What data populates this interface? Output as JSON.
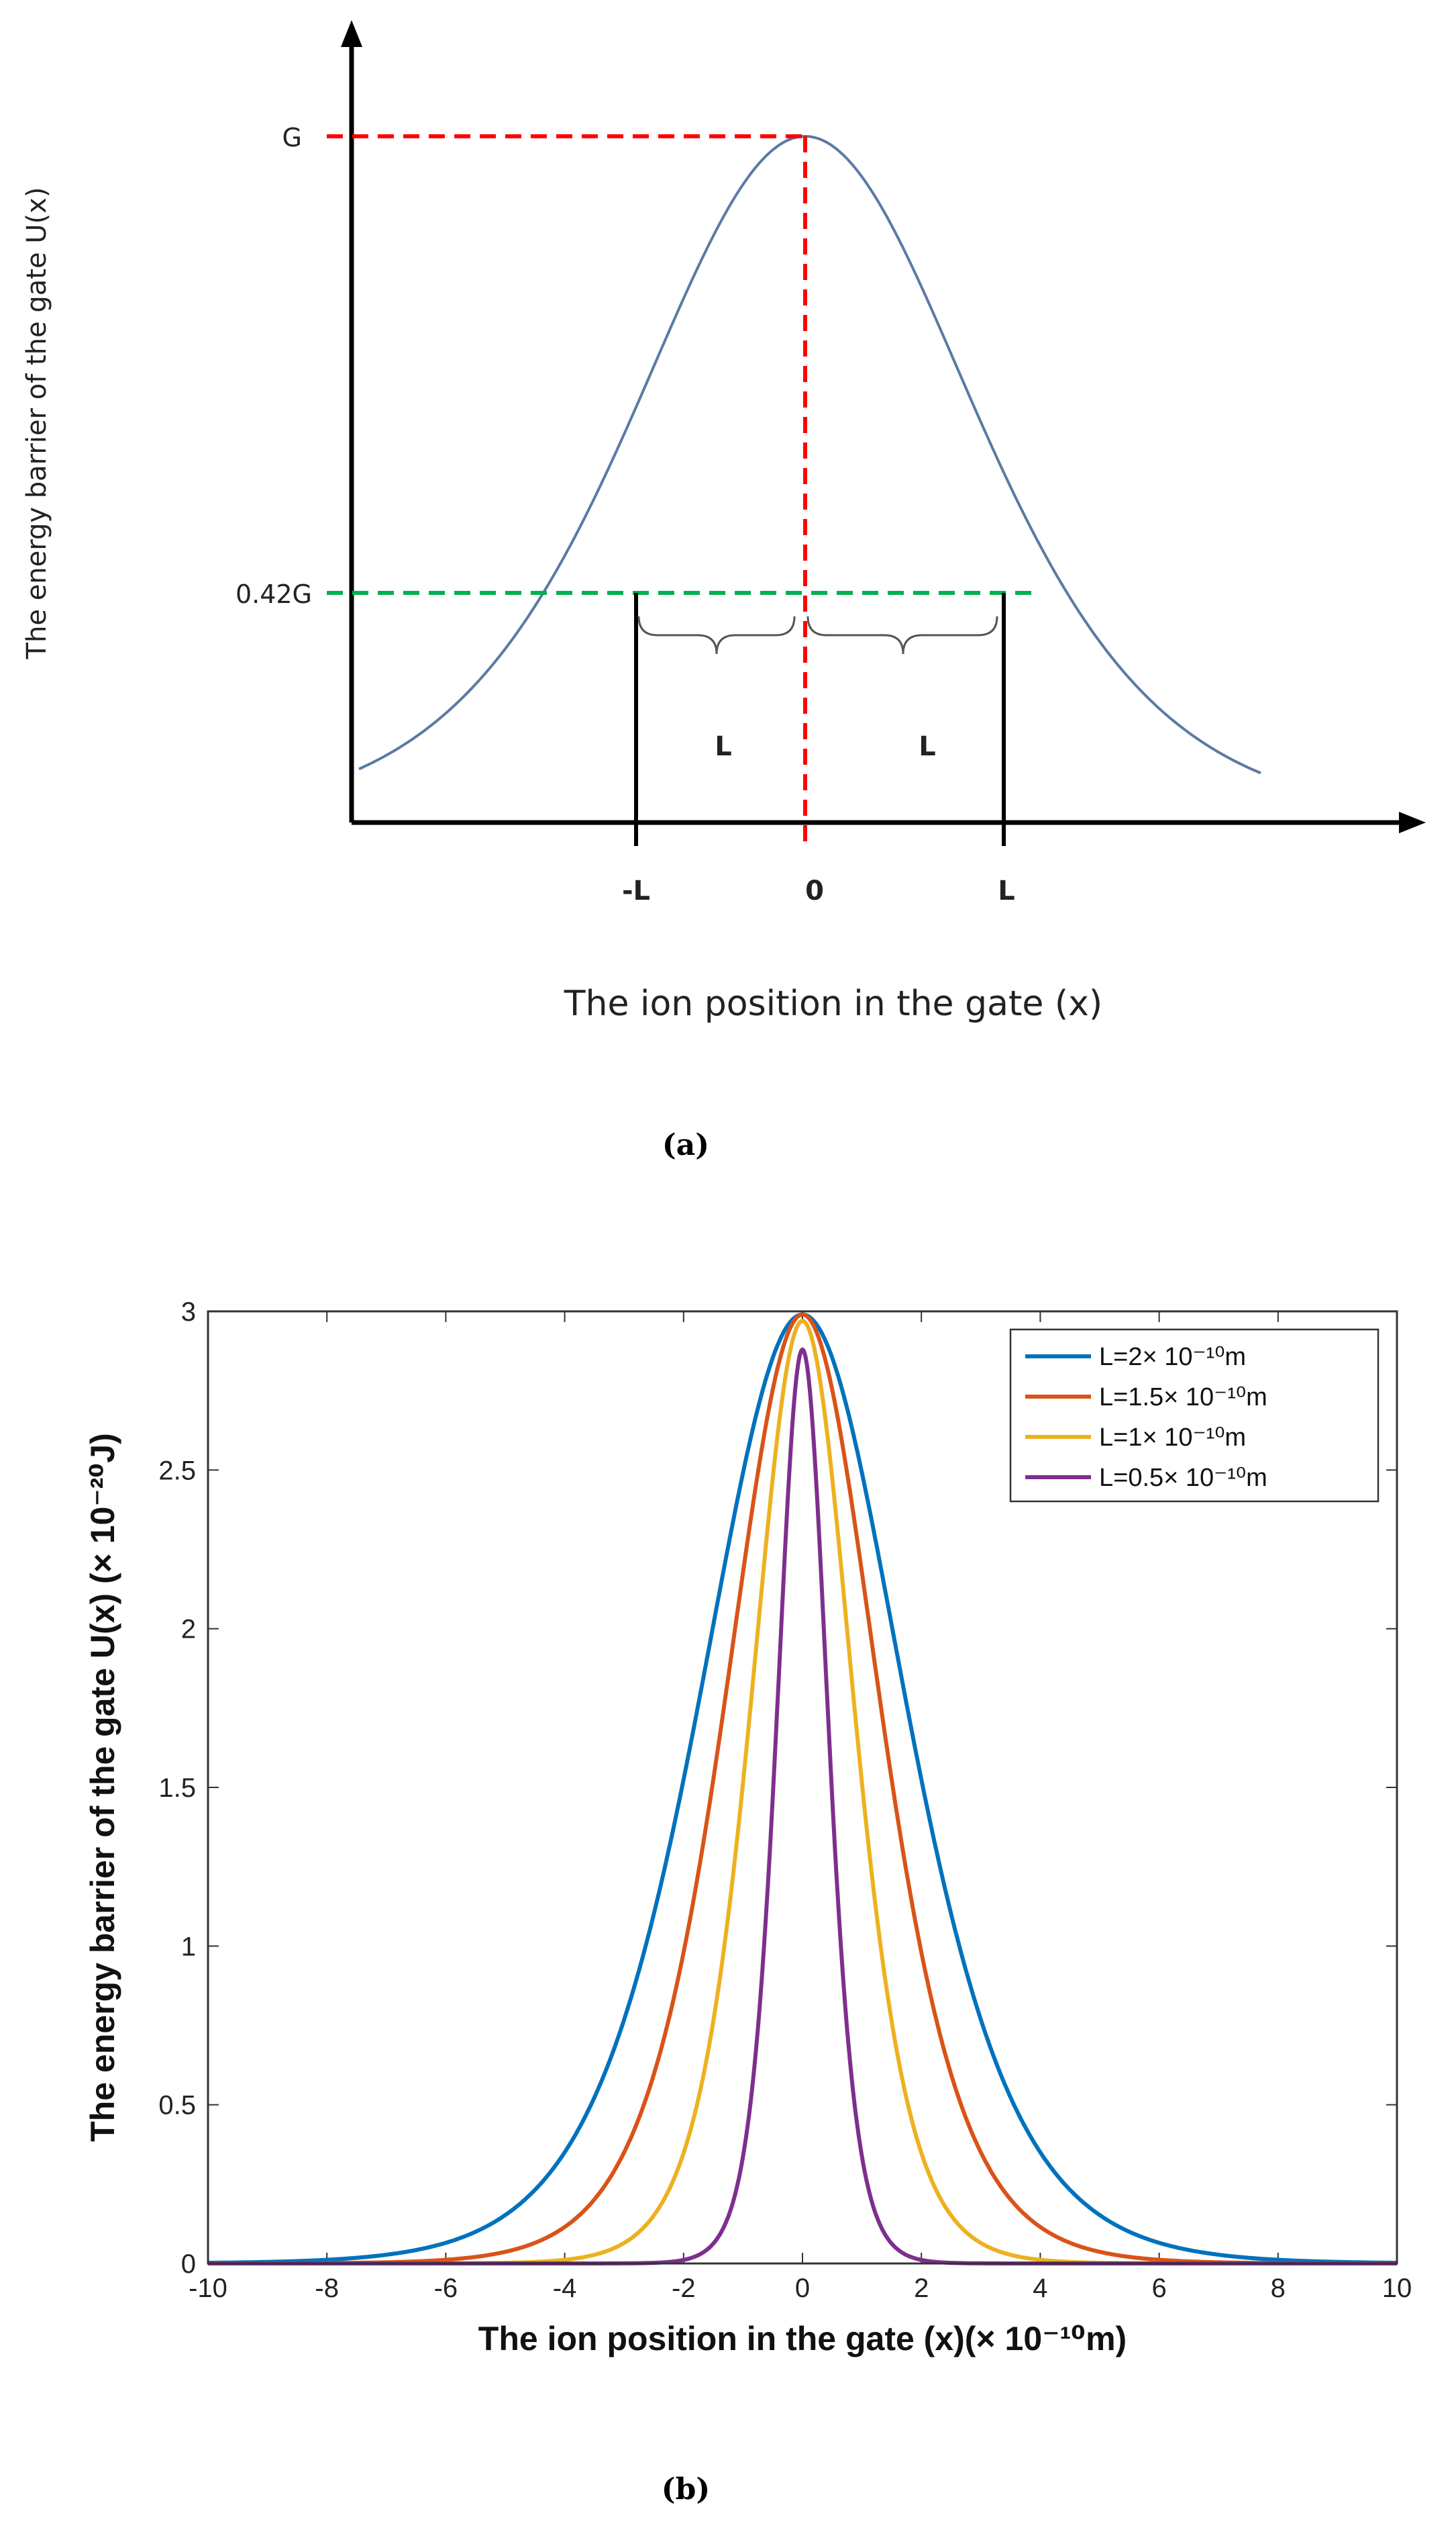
{
  "chart_data": [
    {
      "type": "line",
      "panel": "a",
      "caption": "(a)",
      "xlabel": "The ion position in the gate (x)",
      "ylabel": "The energy barrier of the gate U(x)",
      "x_ticks": [
        "-L",
        "0",
        "L"
      ],
      "y_ticks": [
        "G",
        "0.42G"
      ],
      "segment_labels": [
        "L",
        "L"
      ],
      "curve": {
        "peak_value": "G",
        "half_width_level": "0.42G",
        "half_width": "L"
      }
    },
    {
      "type": "line",
      "panel": "b",
      "caption": "(b)",
      "xlabel": "The ion position in the gate (x)(× 10⁻¹⁰m)",
      "ylabel": "The energy barrier of the gate U(x) (× 10⁻²⁰J)",
      "xlim": [
        -10,
        10
      ],
      "ylim": [
        0,
        3
      ],
      "x_ticks": [
        "-10",
        "-8",
        "-6",
        "-4",
        "-2",
        "0",
        "2",
        "4",
        "6",
        "8",
        "10"
      ],
      "y_ticks": [
        "0",
        "0.5",
        "1",
        "1.5",
        "2",
        "2.5",
        "3"
      ],
      "legend_position": "top-right",
      "series": [
        {
          "name": "L=2× 10⁻¹⁰m",
          "L": 2.0,
          "peak": 2.99,
          "color": "#0072BD"
        },
        {
          "name": "L=1.5× 10⁻¹⁰m",
          "L": 1.5,
          "peak": 2.99,
          "color": "#D95319"
        },
        {
          "name": "L=1× 10⁻¹⁰m",
          "L": 1.0,
          "peak": 2.97,
          "color": "#EDB120"
        },
        {
          "name": "L=0.5× 10⁻¹⁰m",
          "L": 0.5,
          "peak": 2.88,
          "color": "#7E2F8E"
        }
      ]
    }
  ]
}
